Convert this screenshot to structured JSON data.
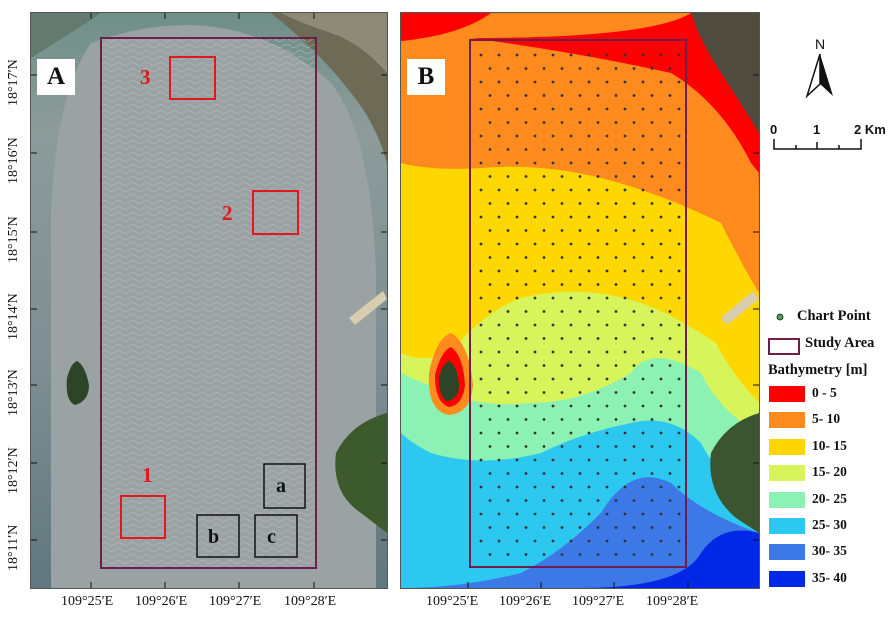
{
  "panels": {
    "a": {
      "letter": "A"
    },
    "b": {
      "letter": "B"
    }
  },
  "axes": {
    "lat_ticks": [
      "18°17′N",
      "18°16′N",
      "18°15′N",
      "18°14′N",
      "18°13′N",
      "18°12′N",
      "18°11′N"
    ],
    "lon_ticks": [
      "109°25′E",
      "109°26′E",
      "109°27′E",
      "109°28′E"
    ]
  },
  "panel_a_markers": {
    "numbered": [
      "1",
      "2",
      "3"
    ],
    "lettered": [
      "a",
      "b",
      "c"
    ]
  },
  "north_arrow": {
    "label": "N"
  },
  "scale_bar": {
    "labels": [
      "0",
      "1",
      "2 Km"
    ]
  },
  "legend": {
    "chart_point": "Chart Point",
    "study_area": "Study Area",
    "bathymetry_title": "Bathymetry [m]",
    "classes": [
      {
        "label": "0 - 5",
        "color": "#ff0000"
      },
      {
        "label": "5- 10",
        "color": "#ff8a1e"
      },
      {
        "label": "10- 15",
        "color": "#ffd700"
      },
      {
        "label": "15- 20",
        "color": "#d7f45a"
      },
      {
        "label": "20- 25",
        "color": "#8cf2b4"
      },
      {
        "label": "25- 30",
        "color": "#2cc8f0"
      },
      {
        "label": "30- 35",
        "color": "#3c78e6"
      },
      {
        "label": "35- 40",
        "color": "#0028e6"
      }
    ]
  },
  "colors": {
    "study_area_outline": "#6e1e4b",
    "marker_red": "#e11919",
    "chart_point": "#49a84d"
  }
}
